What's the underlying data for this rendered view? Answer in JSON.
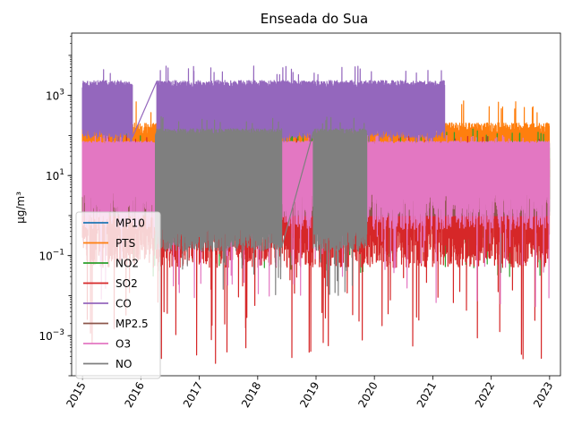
{
  "chart_data": {
    "type": "line",
    "title": "Enseada do Sua",
    "xlabel": "",
    "ylabel": "µg/m³",
    "yscale": "log",
    "xlim": [
      "2014-10-25",
      "2023-03-10"
    ],
    "ylim": [
      0.0001,
      36000
    ],
    "x_ticks": [
      "2015",
      "2016",
      "2017",
      "2018",
      "2019",
      "2020",
      "2021",
      "2022",
      "2023"
    ],
    "y_ticks": [
      {
        "value": 1000,
        "label": "10^3"
      },
      {
        "value": 10,
        "label": "10^1"
      },
      {
        "value": 0.1,
        "label": "10^-1"
      },
      {
        "value": 0.001,
        "label": "10^-3"
      }
    ],
    "legend_position": "lower-left",
    "grid": false,
    "series": [
      {
        "name": "MP10",
        "color": "#1f77b4",
        "start": "2015-01-01",
        "end": "2022-12-31",
        "typical_low": 10,
        "typical_high": 60,
        "min": 1,
        "max": 150,
        "gaps": []
      },
      {
        "name": "PTS",
        "color": "#ff7f0e",
        "start": "2015-01-01",
        "end": "2022-12-31",
        "typical_low": 15,
        "typical_high": 100,
        "min": 3,
        "max": 800,
        "gaps": []
      },
      {
        "name": "NO2",
        "color": "#2ca02c",
        "start": "2015-01-01",
        "end": "2022-12-31",
        "typical_low": 3,
        "typical_high": 40,
        "min": 0.03,
        "max": 150,
        "gaps": []
      },
      {
        "name": "SO2",
        "color": "#d62728",
        "start": "2015-01-01",
        "end": "2022-12-31",
        "typical_low": 1,
        "typical_high": 20,
        "min": 0.0002,
        "max": 100,
        "gaps": []
      },
      {
        "name": "CO",
        "color": "#9467bd",
        "start": "2015-01-01",
        "end": "2021-03-15",
        "typical_low": 150,
        "typical_high": 1500,
        "min": 30,
        "max": 5500,
        "gaps": [
          [
            "2015-11-10",
            "2016-04-10"
          ]
        ]
      },
      {
        "name": "MP2.5",
        "color": "#8c564b",
        "start": "2015-01-01",
        "end": "2022-12-31",
        "typical_low": 1,
        "typical_high": 10,
        "min": 1,
        "max": 25,
        "gaps": []
      },
      {
        "name": "O3",
        "color": "#e377c2",
        "start": "2015-01-01",
        "end": "2022-12-31",
        "typical_low": 5,
        "typical_high": 60,
        "min": 0.005,
        "max": 100,
        "gaps": []
      },
      {
        "name": "NO",
        "color": "#7f7f7f",
        "start": "2016-04-01",
        "end": "2019-11-15",
        "typical_low": 0.5,
        "typical_high": 100,
        "min": 0.01,
        "max": 300,
        "gaps": [
          [
            "2018-06-01",
            "2018-12-15"
          ]
        ]
      }
    ]
  }
}
